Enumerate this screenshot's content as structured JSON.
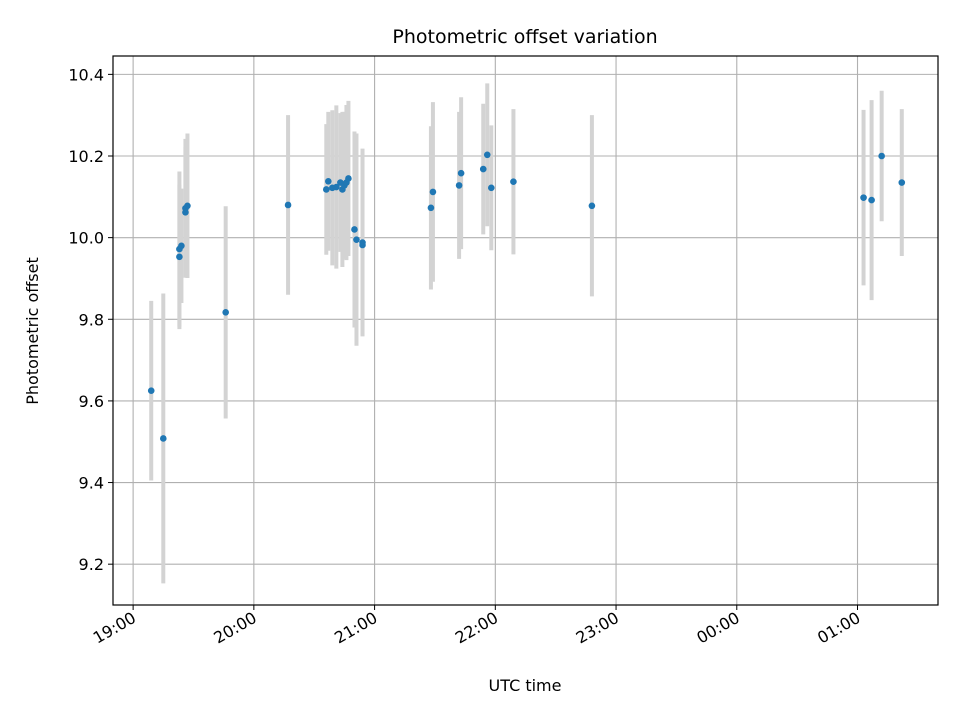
{
  "chart_data": {
    "type": "scatter",
    "title": "Photometric offset variation",
    "xlabel": "UTC time",
    "ylabel": "Photometric offset",
    "x_axis_kind": "time",
    "xlim": [
      "18:50",
      "01:40"
    ],
    "ylim": [
      9.1,
      10.445
    ],
    "x_ticks": [
      "19:00",
      "20:00",
      "21:00",
      "22:00",
      "23:00",
      "00:00",
      "01:00"
    ],
    "y_ticks": [
      "9.2",
      "9.4",
      "9.6",
      "9.8",
      "10.0",
      "10.2",
      "10.4"
    ],
    "grid": true,
    "marker_color": "#1f77b4",
    "errorbar_color": "#d3d3d3",
    "points": [
      {
        "t": "19:09",
        "y": 9.625,
        "err": 0.22
      },
      {
        "t": "19:15",
        "y": 9.508,
        "err": 0.355
      },
      {
        "t": "19:23",
        "y": 9.953,
        "err": 0.177
      },
      {
        "t": "19:23",
        "y": 9.972,
        "err": 0.19
      },
      {
        "t": "19:24",
        "y": 9.98,
        "err": 0.14
      },
      {
        "t": "19:26",
        "y": 10.062,
        "err": 0.16
      },
      {
        "t": "19:26",
        "y": 10.072,
        "err": 0.17
      },
      {
        "t": "19:27",
        "y": 10.078,
        "err": 0.177
      },
      {
        "t": "19:46",
        "y": 9.817,
        "err": 0.26
      },
      {
        "t": "20:17",
        "y": 10.08,
        "err": 0.22
      },
      {
        "t": "20:36",
        "y": 10.118,
        "err": 0.16
      },
      {
        "t": "20:37",
        "y": 10.138,
        "err": 0.17
      },
      {
        "t": "20:39",
        "y": 10.122,
        "err": 0.19
      },
      {
        "t": "20:41",
        "y": 10.124,
        "err": 0.2
      },
      {
        "t": "20:43",
        "y": 10.135,
        "err": 0.17
      },
      {
        "t": "20:44",
        "y": 10.118,
        "err": 0.19
      },
      {
        "t": "20:45",
        "y": 10.128,
        "err": 0.18
      },
      {
        "t": "20:46",
        "y": 10.135,
        "err": 0.19
      },
      {
        "t": "20:47",
        "y": 10.145,
        "err": 0.19
      },
      {
        "t": "20:50",
        "y": 10.02,
        "err": 0.24
      },
      {
        "t": "20:51",
        "y": 9.995,
        "err": 0.26
      },
      {
        "t": "20:54",
        "y": 9.988,
        "err": 0.23
      },
      {
        "t": "20:54",
        "y": 9.982,
        "err": 0.22
      },
      {
        "t": "21:28",
        "y": 10.073,
        "err": 0.2
      },
      {
        "t": "21:29",
        "y": 10.112,
        "err": 0.22
      },
      {
        "t": "21:42",
        "y": 10.128,
        "err": 0.18
      },
      {
        "t": "21:43",
        "y": 10.158,
        "err": 0.186
      },
      {
        "t": "21:54",
        "y": 10.168,
        "err": 0.16
      },
      {
        "t": "21:56",
        "y": 10.203,
        "err": 0.175
      },
      {
        "t": "21:58",
        "y": 10.122,
        "err": 0.153
      },
      {
        "t": "22:09",
        "y": 10.137,
        "err": 0.178
      },
      {
        "t": "22:48",
        "y": 10.078,
        "err": 0.222
      },
      {
        "t": "01:03",
        "y": 10.098,
        "err": 0.215
      },
      {
        "t": "01:07",
        "y": 10.092,
        "err": 0.245
      },
      {
        "t": "01:12",
        "y": 10.2,
        "err": 0.16
      },
      {
        "t": "01:22",
        "y": 10.135,
        "err": 0.18
      }
    ]
  }
}
